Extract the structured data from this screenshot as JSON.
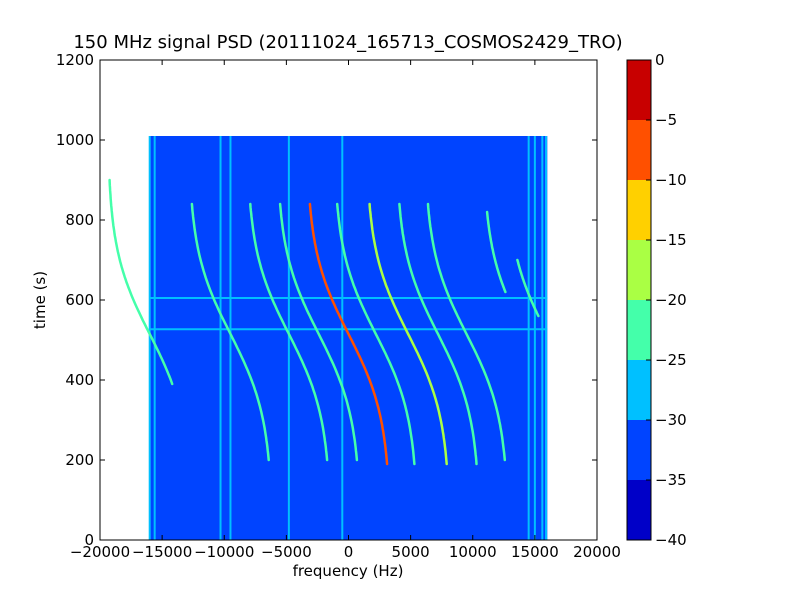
{
  "chart_data": {
    "type": "heatmap",
    "title": "150 MHz signal PSD (20111024_165713_COSMOS2429_TRO)",
    "xlabel": "frequency (Hz)",
    "ylabel": "time (s)",
    "xlim": [
      -20000,
      20000
    ],
    "ylim": [
      0,
      1200
    ],
    "xticks": [
      -20000,
      -15000,
      -10000,
      -5000,
      0,
      5000,
      10000,
      15000,
      20000
    ],
    "xtick_labels": [
      "−20000",
      "−15000",
      "−10000",
      "−5000",
      "0",
      "5000",
      "10000",
      "15000",
      "20000"
    ],
    "yticks": [
      0,
      200,
      400,
      600,
      800,
      1000,
      1200
    ],
    "ytick_labels": [
      "0",
      "200",
      "400",
      "600",
      "800",
      "1000",
      "1200"
    ],
    "data_extent": {
      "frequency": [
        -16000,
        16000
      ],
      "time": [
        0,
        1010
      ]
    },
    "background_level": -33,
    "horizontal_lines": [
      {
        "time": 605,
        "level": -26
      },
      {
        "time": 527,
        "level": -27
      }
    ],
    "vertical_lines": [
      {
        "frequency": -16000,
        "level": -28
      },
      {
        "frequency": -15600,
        "level": -28
      },
      {
        "frequency": -10300,
        "level": -28
      },
      {
        "frequency": -9500,
        "level": -26
      },
      {
        "frequency": -4800,
        "level": -26
      },
      {
        "frequency": -500,
        "level": -27
      },
      {
        "frequency": 14500,
        "level": -26
      },
      {
        "frequency": 15000,
        "level": -28
      },
      {
        "frequency": 15600,
        "level": -27
      },
      {
        "frequency": 15900,
        "level": -28
      }
    ],
    "doppler_traces": [
      {
        "f_center": -16000,
        "t_start": 390,
        "t_end": 900,
        "level": -22,
        "visible": [
          200,
          840
        ]
      },
      {
        "f_center": -9500,
        "t_start": 200,
        "t_end": 840,
        "level": -24
      },
      {
        "f_center": -4800,
        "t_start": 200,
        "t_end": 840,
        "level": -21
      },
      {
        "f_center": -2400,
        "t_start": 200,
        "t_end": 840,
        "level": -22
      },
      {
        "f_center": 0,
        "t_start": 190,
        "t_end": 840,
        "level": -7
      },
      {
        "f_center": 2200,
        "t_start": 190,
        "t_end": 840,
        "level": -25
      },
      {
        "f_center": 4800,
        "t_start": 190,
        "t_end": 840,
        "level": -20
      },
      {
        "f_center": 7200,
        "t_start": 190,
        "t_end": 840,
        "level": -22
      },
      {
        "f_center": 9500,
        "t_start": 200,
        "t_end": 840,
        "level": -25
      },
      {
        "f_center": 14200,
        "t_start": 620,
        "t_end": 820,
        "level": -22
      },
      {
        "f_center": 16000,
        "t_start": 560,
        "t_end": 700,
        "level": -23
      }
    ],
    "colorbar": {
      "levels": [
        -40,
        -35,
        -30,
        -25,
        -20,
        -15,
        -10,
        -5,
        0
      ],
      "tick_labels": [
        "−40",
        "−35",
        "−30",
        "−25",
        "−20",
        "−15",
        "−10",
        "−5",
        "0"
      ],
      "colors": [
        "#0000c8",
        "#0044ff",
        "#00c0ff",
        "#44ffaa",
        "#aaff44",
        "#ffd000",
        "#ff5000",
        "#c80000"
      ]
    },
    "grid": false
  }
}
